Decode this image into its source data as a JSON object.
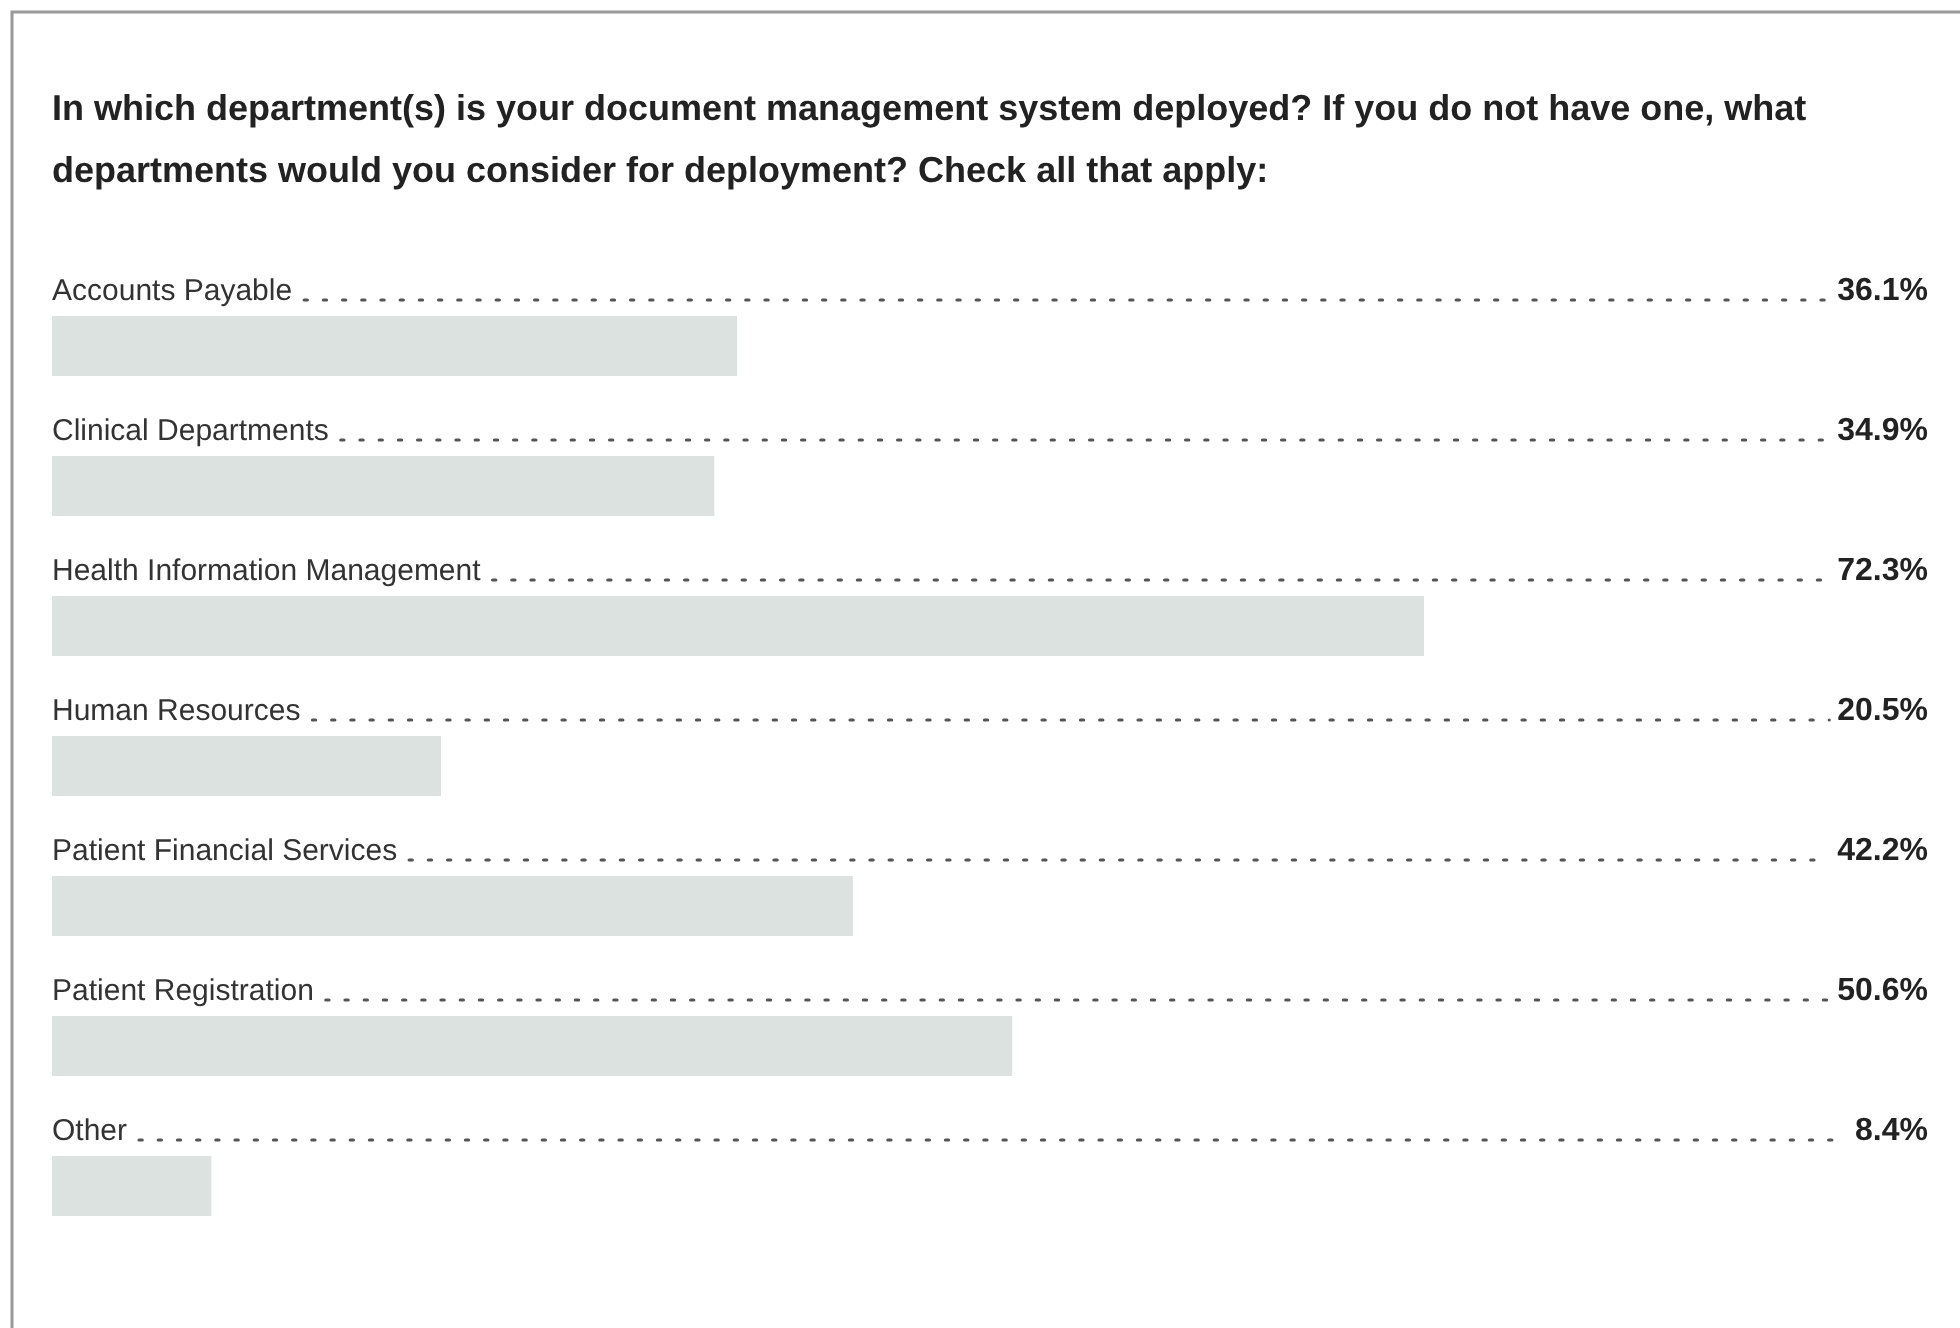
{
  "chart_data": {
    "type": "bar",
    "orientation": "horizontal",
    "title": "In which department(s) is your document management system deployed? If you do not have one, what departments would you consider for deployment? Check all that apply:",
    "categories": [
      "Accounts Payable",
      "Clinical Departments",
      "Health Information Management",
      "Human Resources",
      "Patient Financial Services",
      "Patient Registration",
      "Other"
    ],
    "values": [
      36.1,
      34.9,
      72.3,
      20.5,
      42.2,
      50.6,
      8.4
    ],
    "value_labels": [
      "36.1%",
      "34.9%",
      "72.3%",
      "20.5%",
      "42.2%",
      "50.6%",
      "8.4%"
    ],
    "color": "#dce2df"
  }
}
